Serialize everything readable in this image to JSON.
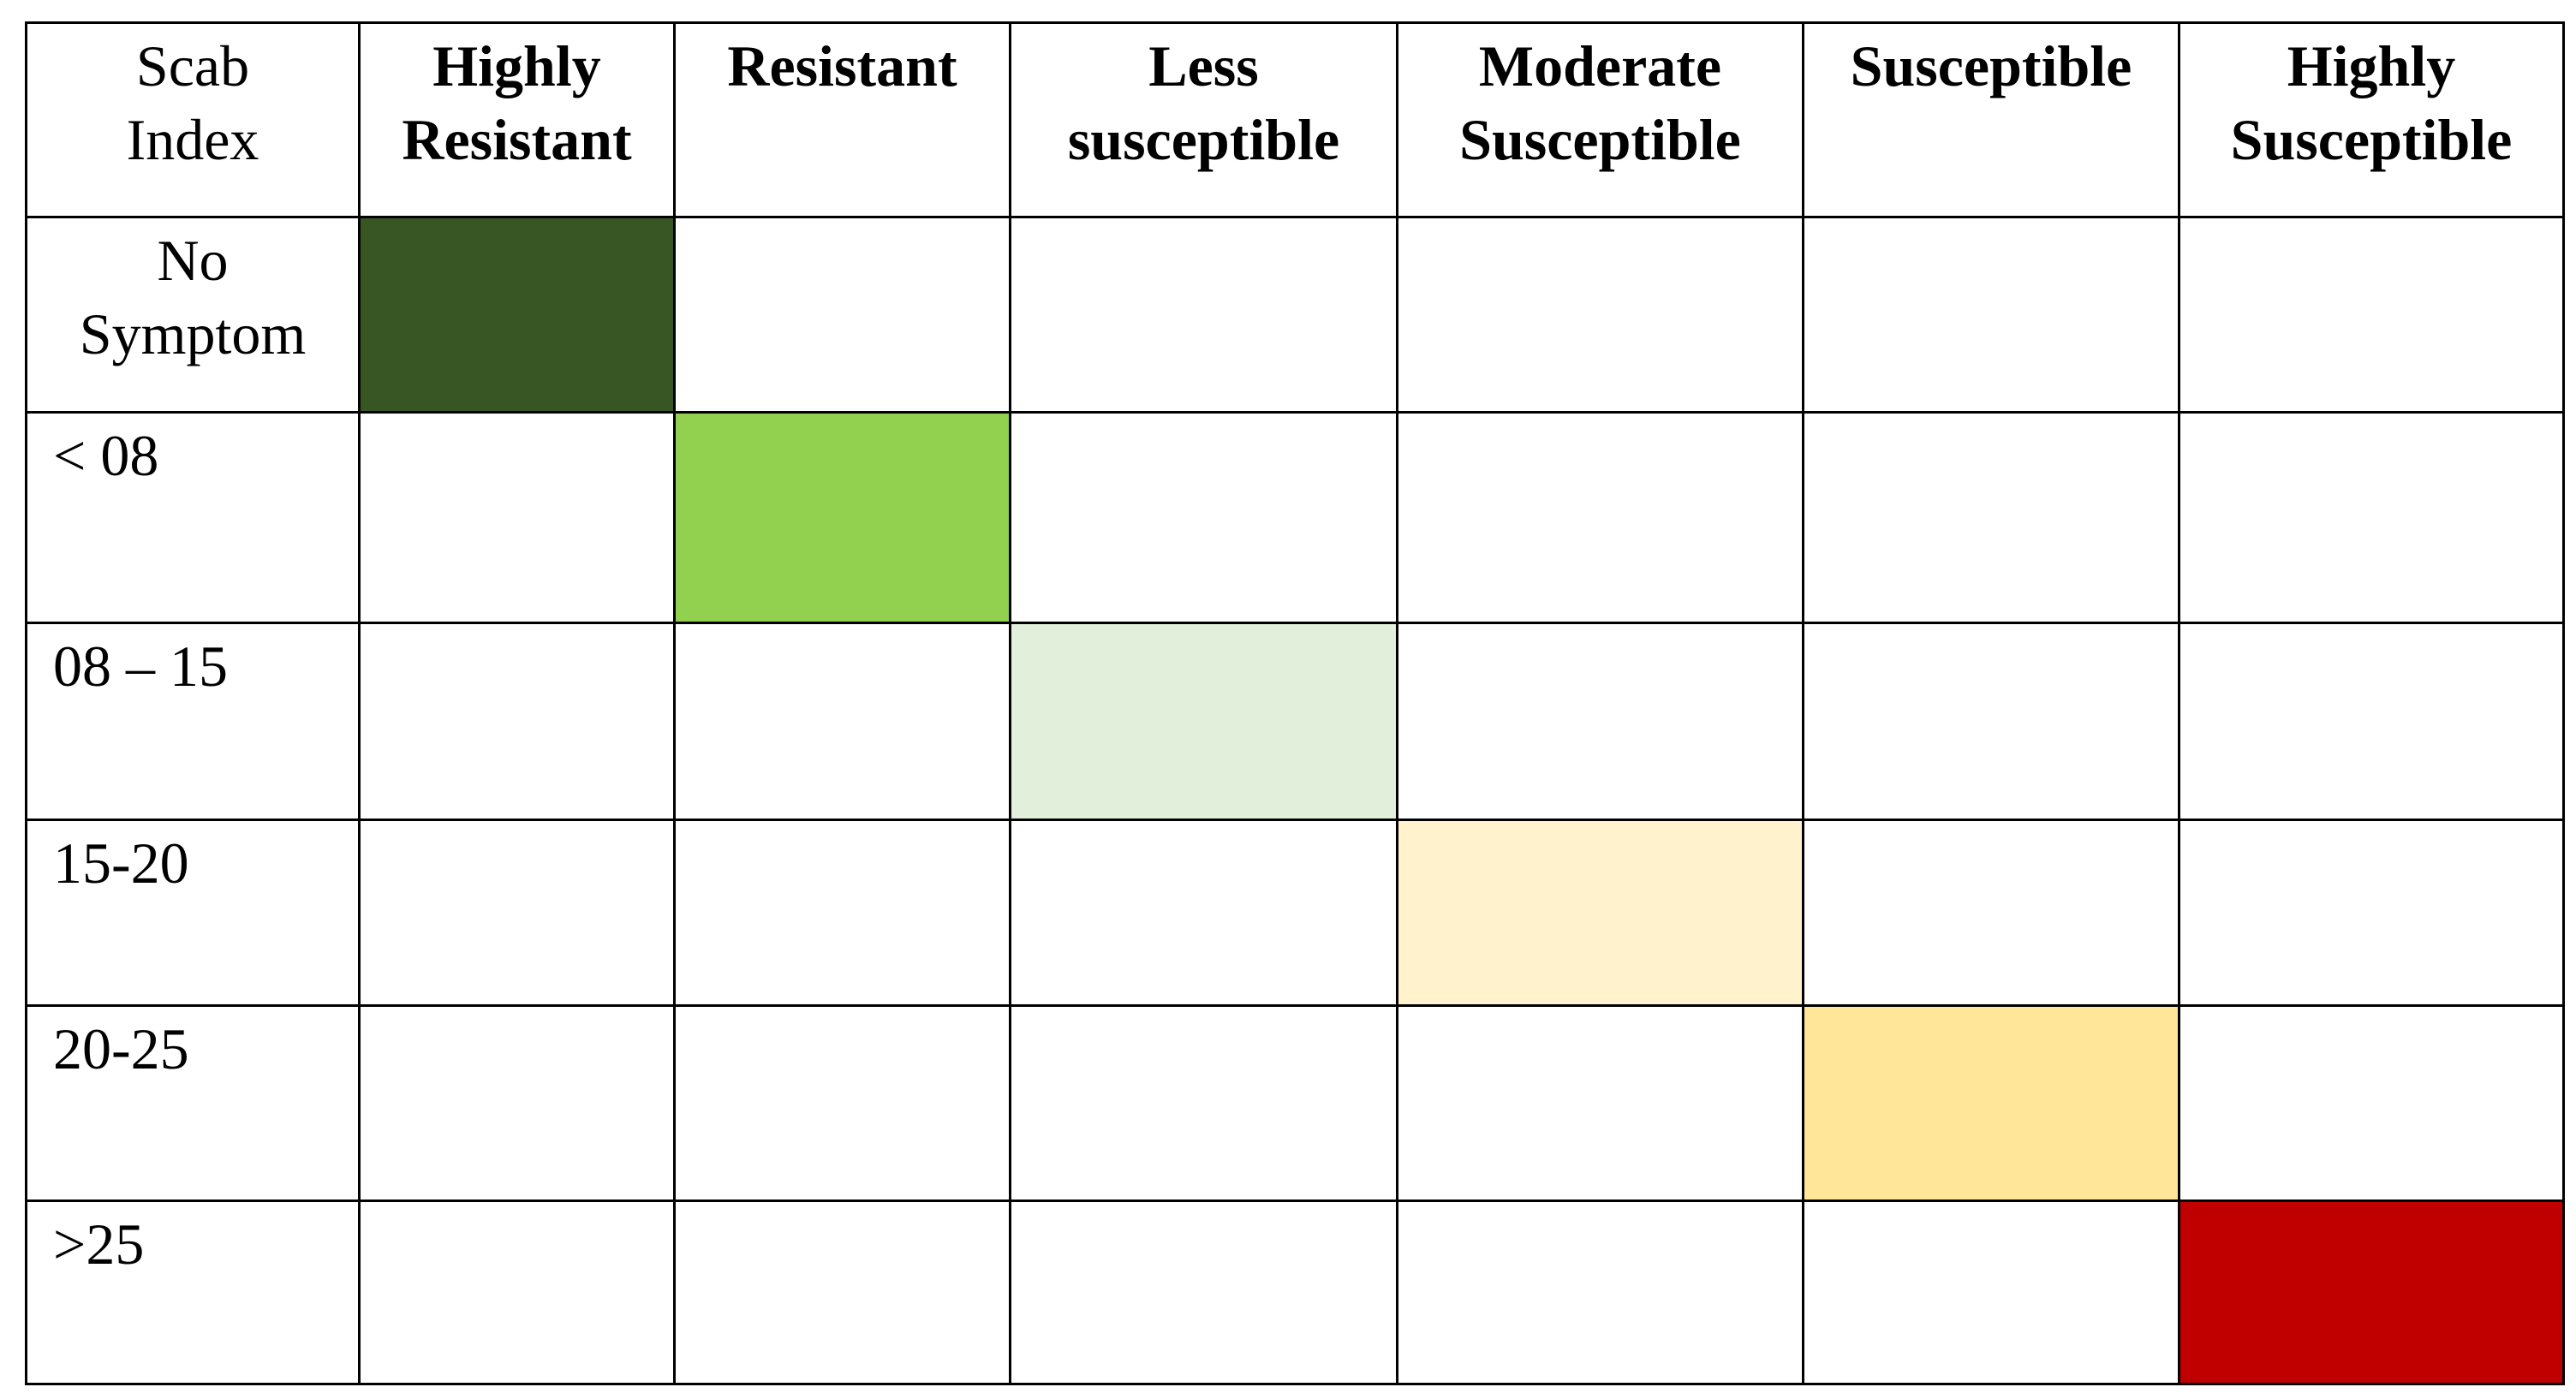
{
  "table": {
    "header": [
      "Scab Index",
      "Highly Resistant",
      "Resistant",
      "Less susceptible",
      "Moderate Susceptible",
      "Susceptible",
      "Highly Susceptible"
    ],
    "rows": [
      {
        "label": "No Symptom",
        "color": "#375623"
      },
      {
        "label": "< 08",
        "color": "#92d050"
      },
      {
        "label": "08 – 15",
        "color": "#e2efda"
      },
      {
        "label": "15-20",
        "color": "#fff2cc"
      },
      {
        "label": "20-25",
        "color": "#ffe699"
      },
      {
        "label": ">25",
        "color": "#c00000"
      }
    ]
  }
}
